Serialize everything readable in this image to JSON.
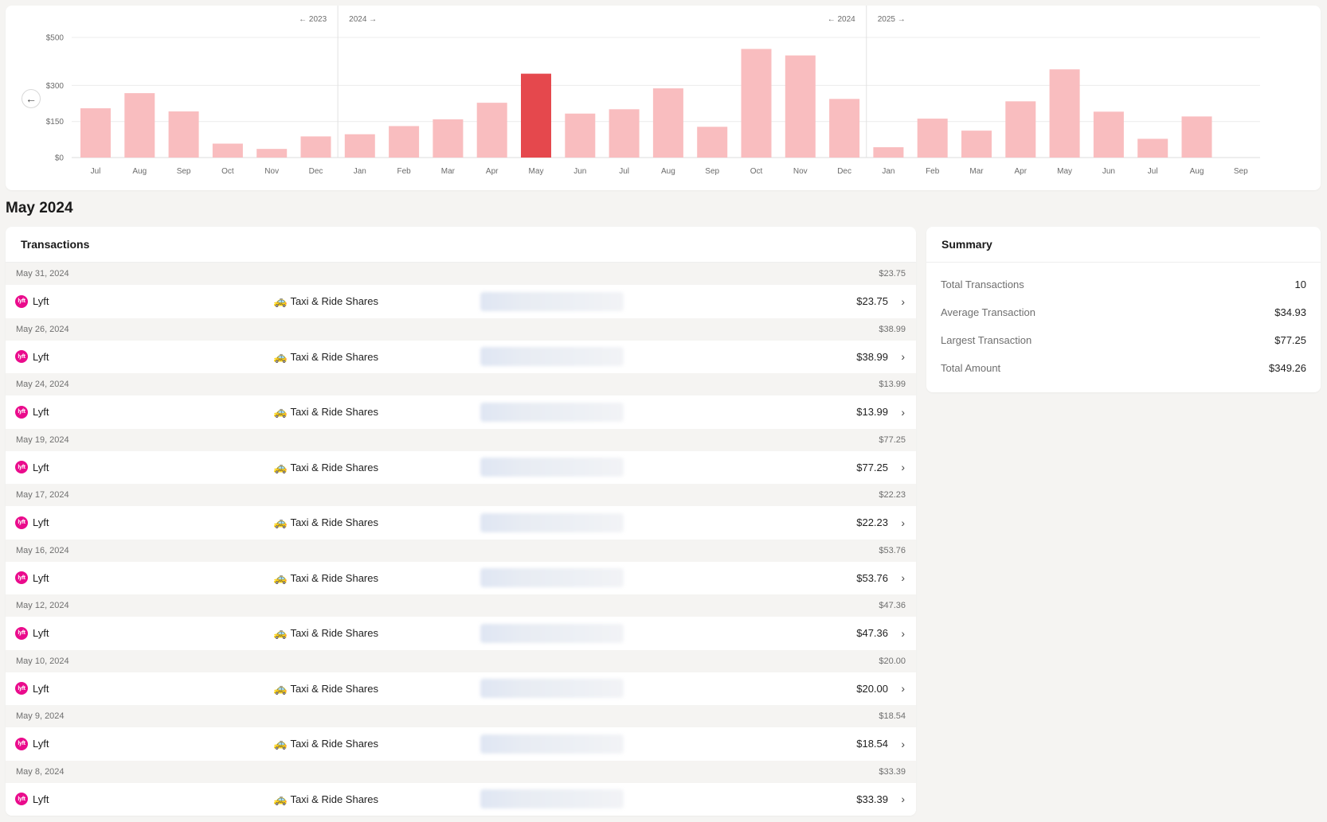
{
  "chart_data": {
    "type": "bar",
    "categories": [
      "Jul",
      "Aug",
      "Sep",
      "Oct",
      "Nov",
      "Dec",
      "Jan",
      "Feb",
      "Mar",
      "Apr",
      "May",
      "Jun",
      "Jul",
      "Aug",
      "Sep",
      "Oct",
      "Nov",
      "Dec",
      "Jan",
      "Feb",
      "Mar",
      "Apr",
      "May",
      "Jun",
      "Jul",
      "Aug",
      "Sep"
    ],
    "values": [
      205,
      268,
      192,
      58,
      36,
      88,
      97,
      131,
      159,
      228,
      349,
      183,
      201,
      288,
      128,
      452,
      425,
      244,
      43,
      162,
      112,
      234,
      367,
      191,
      78,
      171,
      0
    ],
    "highlight_index": 10,
    "colors": {
      "bar": "#f9bdbf",
      "highlight": "#e5484d",
      "grid": "#ececec",
      "tick": "#6b6b6b"
    },
    "ytick_labels": [
      {
        "value": 0,
        "label": "$0"
      },
      {
        "value": 150,
        "label": "$150"
      },
      {
        "value": 300,
        "label": "$300"
      },
      {
        "value": 500,
        "label": "$500"
      }
    ],
    "ylim": [
      0,
      500
    ],
    "year_markers": [
      {
        "after_index": 5,
        "left_label": "← 2023",
        "right_label": "2024 →"
      },
      {
        "after_index": 17,
        "left_label": "← 2024",
        "right_label": "2025 →"
      }
    ]
  },
  "chart_nav": {
    "back_icon": "arrow-left-icon",
    "back_glyph": "←"
  },
  "page": {
    "month_title": "May 2024"
  },
  "transactions": {
    "title": "Transactions",
    "items": [
      {
        "date": "May 31, 2024",
        "day_total": "$23.75",
        "merchant": "Lyft",
        "merchant_logo": "lyft",
        "category_icon": "🚕",
        "category": "Taxi & Ride Shares",
        "amount": "$23.75"
      },
      {
        "date": "May 26, 2024",
        "day_total": "$38.99",
        "merchant": "Lyft",
        "merchant_logo": "lyft",
        "category_icon": "🚕",
        "category": "Taxi & Ride Shares",
        "amount": "$38.99"
      },
      {
        "date": "May 24, 2024",
        "day_total": "$13.99",
        "merchant": "Lyft",
        "merchant_logo": "lyft",
        "category_icon": "🚕",
        "category": "Taxi & Ride Shares",
        "amount": "$13.99"
      },
      {
        "date": "May 19, 2024",
        "day_total": "$77.25",
        "merchant": "Lyft",
        "merchant_logo": "lyft",
        "category_icon": "🚕",
        "category": "Taxi & Ride Shares",
        "amount": "$77.25"
      },
      {
        "date": "May 17, 2024",
        "day_total": "$22.23",
        "merchant": "Lyft",
        "merchant_logo": "lyft",
        "category_icon": "🚕",
        "category": "Taxi & Ride Shares",
        "amount": "$22.23"
      },
      {
        "date": "May 16, 2024",
        "day_total": "$53.76",
        "merchant": "Lyft",
        "merchant_logo": "lyft",
        "category_icon": "🚕",
        "category": "Taxi & Ride Shares",
        "amount": "$53.76"
      },
      {
        "date": "May 12, 2024",
        "day_total": "$47.36",
        "merchant": "Lyft",
        "merchant_logo": "lyft",
        "category_icon": "🚕",
        "category": "Taxi & Ride Shares",
        "amount": "$47.36"
      },
      {
        "date": "May 10, 2024",
        "day_total": "$20.00",
        "merchant": "Lyft",
        "merchant_logo": "lyft",
        "category_icon": "🚕",
        "category": "Taxi & Ride Shares",
        "amount": "$20.00"
      },
      {
        "date": "May 9, 2024",
        "day_total": "$18.54",
        "merchant": "Lyft",
        "merchant_logo": "lyft",
        "category_icon": "🚕",
        "category": "Taxi & Ride Shares",
        "amount": "$18.54"
      },
      {
        "date": "May 8, 2024",
        "day_total": "$33.39",
        "merchant": "Lyft",
        "merchant_logo": "lyft",
        "category_icon": "🚕",
        "category": "Taxi & Ride Shares",
        "amount": "$33.39"
      }
    ]
  },
  "summary": {
    "title": "Summary",
    "rows": [
      {
        "label": "Total Transactions",
        "value": "10"
      },
      {
        "label": "Average Transaction",
        "value": "$34.93"
      },
      {
        "label": "Largest Transaction",
        "value": "$77.25"
      },
      {
        "label": "Total Amount",
        "value": "$349.26"
      }
    ]
  }
}
